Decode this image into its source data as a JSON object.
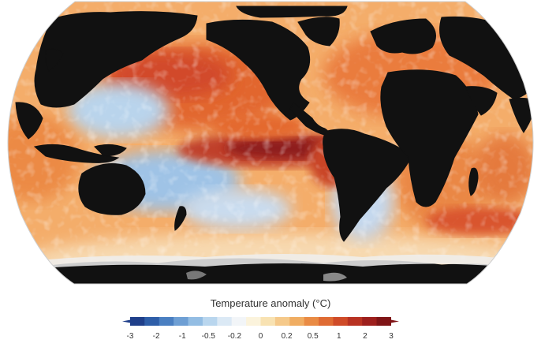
{
  "map": {
    "projection": "Robinson",
    "variable": "sea surface temperature anomaly",
    "land_color": "#111111",
    "ice_color": "#f2f2f2",
    "ocean_base_color": "#f7d3a4",
    "regions": [
      {
        "name": "Eastern equatorial Pacific",
        "anomaly": 3
      },
      {
        "name": "North Pacific",
        "anomaly": 2
      },
      {
        "name": "North Atlantic",
        "anomaly": 1.5
      },
      {
        "name": "Western Pacific warm pool",
        "anomaly": -0.5
      },
      {
        "name": "South Pacific subtropics",
        "anomaly": -0.5
      },
      {
        "name": "Indian Ocean",
        "anomaly": 1
      },
      {
        "name": "Southern Ocean",
        "anomaly": 0.5
      }
    ]
  },
  "legend": {
    "title": "Temperature anomaly (°C)",
    "ticks": [
      "-3",
      "-2",
      "-1",
      "-0.5",
      "-0.2",
      "0",
      "0.2",
      "0.5",
      "1",
      "2",
      "3"
    ],
    "colors": [
      "#1f3f8a",
      "#2e5ea8",
      "#4a7fc1",
      "#6e9fd4",
      "#93bde3",
      "#b9d6ee",
      "#dbe9f5",
      "#f2f5f8",
      "#fbf3dc",
      "#f8e2b2",
      "#f5c98a",
      "#f0ad62",
      "#e98b44",
      "#df6b33",
      "#cf4b28",
      "#b83222",
      "#9d1f1d",
      "#7f1416"
    ]
  }
}
